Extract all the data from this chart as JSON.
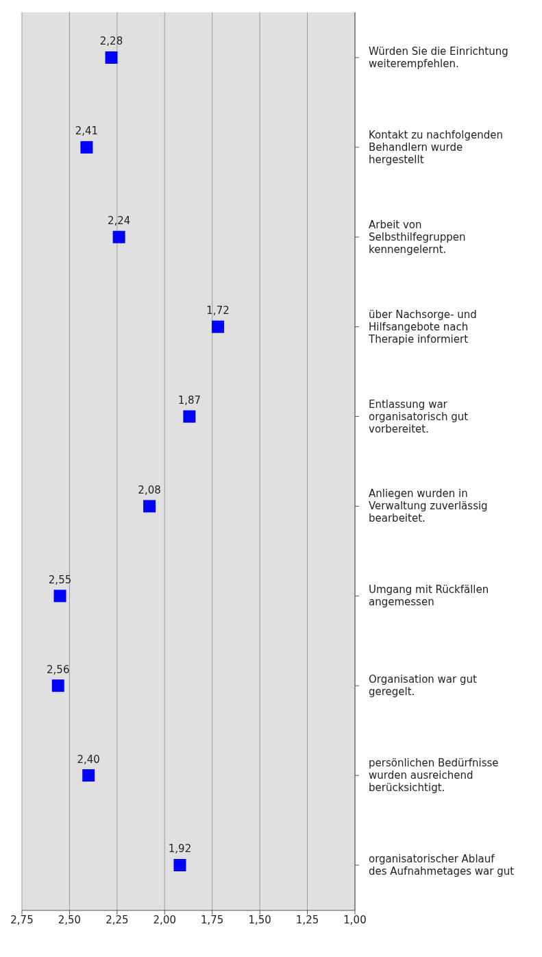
{
  "chart_data": {
    "type": "scatter",
    "orientation": "horizontal",
    "categories": [
      "Würden Sie die Einrichtung weiterempfehlen.",
      "Kontakt zu nachfolgenden Behandlern wurde hergestellt",
      "Arbeit von Selbsthilfegruppen kennengelernt.",
      "über Nachsorge- und Hilfsangebote nach Therapie informiert",
      "Entlassung war organisatorisch gut vorbereitet.",
      "Anliegen wurden in Verwaltung zuverlässig bearbeitet.",
      "Umgang mit Rückfällen angemessen",
      "Organisation war gut geregelt.",
      "persönlichen Bedürfnisse wurden ausreichend berücksichtigt.",
      "organisatorischer Ablauf des Aufnahmetages war gut"
    ],
    "values": [
      2.28,
      2.41,
      2.24,
      1.72,
      1.87,
      2.08,
      2.55,
      2.56,
      2.4,
      1.92
    ],
    "value_labels": [
      "2,28",
      "2,41",
      "2,24",
      "1,72",
      "1,87",
      "2,08",
      "2,55",
      "2,56",
      "2,40",
      "1,92"
    ],
    "color": "#0000ff",
    "marker": "square",
    "xlim": [
      2.75,
      1.0
    ],
    "xticks": [
      {
        "value": 2.75,
        "label": "2,75"
      },
      {
        "value": 2.5,
        "label": "2,50"
      },
      {
        "value": 2.25,
        "label": "2,25"
      },
      {
        "value": 2.0,
        "label": "2,00"
      },
      {
        "value": 1.75,
        "label": "1,75"
      },
      {
        "value": 1.5,
        "label": "1,50"
      },
      {
        "value": 1.25,
        "label": "1,25"
      },
      {
        "value": 1.0,
        "label": "1,00"
      }
    ],
    "grid": "x"
  }
}
